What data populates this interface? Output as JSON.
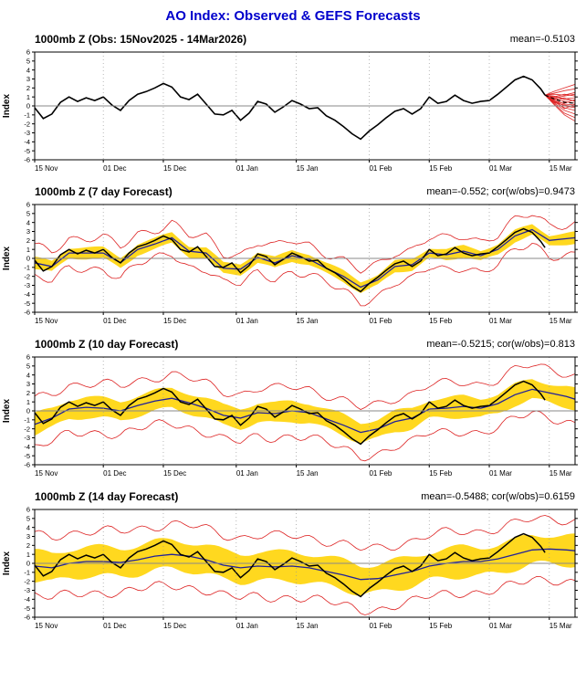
{
  "title": "AO Index: Observed & GEFS Forecasts",
  "colors": {
    "title": "#0000cc",
    "obs_line": "#000000",
    "ensemble_line": "#dd2222",
    "mean_line": "#20209a",
    "band_fill": "#ffd81f",
    "zero_line": "#888888",
    "grid": "#999999",
    "frame": "#000000"
  },
  "chart_data": {
    "type": "line",
    "ylabel": "Index",
    "ylim": [
      -6,
      6
    ],
    "y_ticks": [
      6,
      5,
      4,
      3,
      2,
      1,
      0,
      -1,
      -2,
      -3,
      -4,
      -5,
      -6
    ],
    "x_domain": [
      0,
      126
    ],
    "x_ticks": [
      {
        "day": 0,
        "label": "15 Nov"
      },
      {
        "day": 16,
        "label": "01 Dec"
      },
      {
        "day": 30,
        "label": "15 Dec"
      },
      {
        "day": 47,
        "label": "01 Jan"
      },
      {
        "day": 61,
        "label": "15 Jan"
      },
      {
        "day": 78,
        "label": "01 Feb"
      },
      {
        "day": 92,
        "label": "15 Feb"
      },
      {
        "day": 106,
        "label": "01 Mar"
      },
      {
        "day": 120,
        "label": "15 Mar"
      }
    ],
    "obs": {
      "x": [
        0,
        2,
        4,
        6,
        8,
        10,
        12,
        14,
        16,
        18,
        20,
        22,
        24,
        26,
        28,
        30,
        32,
        34,
        36,
        38,
        40,
        42,
        44,
        46,
        48,
        50,
        52,
        54,
        56,
        58,
        60,
        62,
        64,
        66,
        68,
        70,
        72,
        74,
        76,
        78,
        80,
        82,
        84,
        86,
        88,
        90,
        92,
        94,
        96,
        98,
        100,
        102,
        104,
        106,
        108,
        110,
        112,
        114,
        116,
        118,
        119
      ],
      "y": [
        -0.2,
        -1.4,
        -0.9,
        0.4,
        1.0,
        0.5,
        0.9,
        0.6,
        1.0,
        0.1,
        -0.5,
        0.6,
        1.3,
        1.6,
        2.0,
        2.5,
        2.1,
        1.0,
        0.7,
        1.3,
        0.2,
        -0.9,
        -1.0,
        -0.5,
        -1.6,
        -0.8,
        0.5,
        0.2,
        -0.7,
        -0.1,
        0.6,
        0.2,
        -0.3,
        -0.2,
        -1.1,
        -1.6,
        -2.3,
        -3.1,
        -3.7,
        -2.8,
        -2.1,
        -1.3,
        -0.6,
        -0.3,
        -0.9,
        -0.3,
        1.0,
        0.3,
        0.5,
        1.2,
        0.6,
        0.3,
        0.5,
        0.6,
        1.3,
        2.1,
        2.9,
        3.3,
        2.9,
        1.9,
        1.2
      ]
    },
    "panels": [
      {
        "id": "obs",
        "title": "1000mb Z (Obs: 15Nov2025 - 14Mar2026)",
        "stats": "mean=-0.5103",
        "ensemble": {
          "days": [
            119,
            121,
            123.5,
            126
          ],
          "members": [
            [
              1.2,
              1.6,
              2.0,
              2.4
            ],
            [
              1.2,
              1.4,
              1.7,
              1.9
            ],
            [
              1.2,
              1.3,
              1.2,
              1.5
            ],
            [
              1.2,
              1.0,
              1.3,
              1.1
            ],
            [
              1.2,
              1.1,
              0.8,
              0.9
            ],
            [
              1.2,
              0.9,
              0.7,
              0.6
            ],
            [
              1.2,
              0.8,
              0.5,
              0.3
            ],
            [
              1.2,
              0.7,
              0.2,
              0.1
            ],
            [
              1.2,
              0.6,
              0.0,
              -0.2
            ],
            [
              1.2,
              0.5,
              -0.2,
              -0.5
            ],
            [
              1.2,
              0.4,
              -0.5,
              -0.9
            ],
            [
              1.2,
              0.3,
              -0.8,
              -1.3
            ],
            [
              1.2,
              0.2,
              -1.0,
              -1.7
            ],
            [
              1.2,
              0.5,
              0.3,
              0.7
            ],
            [
              1.2,
              0.9,
              1.1,
              1.3
            ],
            [
              1.2,
              0.7,
              0.9,
              0.5
            ],
            [
              1.2,
              0.4,
              0.1,
              -0.1
            ],
            [
              1.2,
              0.6,
              -0.3,
              0.2
            ]
          ]
        },
        "ensemble_mean": {
          "days": [
            119,
            121,
            123.5,
            126
          ],
          "values": [
            1.2,
            0.8,
            0.4,
            0.3
          ]
        }
      },
      {
        "id": "f07",
        "title": "1000mb Z (7 day Forecast)",
        "stats": "mean=-0.552; cor(w/obs)=0.9473",
        "spread": 0.6,
        "range": 1.7,
        "mean": {
          "x": [
            0,
            4,
            8,
            12,
            16,
            20,
            24,
            28,
            32,
            36,
            40,
            44,
            48,
            52,
            56,
            60,
            64,
            68,
            72,
            76,
            80,
            84,
            88,
            92,
            96,
            100,
            104,
            108,
            112,
            116,
            120,
            124,
            126
          ],
          "y": [
            -0.5,
            -0.9,
            0.6,
            0.6,
            0.6,
            -0.5,
            1.0,
            1.6,
            2.3,
            0.8,
            0.6,
            -1.1,
            -1.2,
            0.1,
            -0.5,
            0.3,
            -0.1,
            -1.1,
            -2.0,
            -3.2,
            -2.4,
            -0.9,
            -0.7,
            0.6,
            0.4,
            0.8,
            0.3,
            1.0,
            2.5,
            3.2,
            2.0,
            2.2,
            2.3
          ]
        }
      },
      {
        "id": "f10",
        "title": "1000mb Z (10 day Forecast)",
        "stats": "mean=-0.5215; cor(w/obs)=0.813",
        "spread": 1.1,
        "range": 2.7,
        "mean": {
          "x": [
            0,
            4,
            8,
            12,
            16,
            20,
            24,
            28,
            32,
            36,
            40,
            44,
            48,
            52,
            56,
            60,
            64,
            68,
            72,
            76,
            80,
            84,
            88,
            92,
            96,
            100,
            104,
            108,
            112,
            116,
            120,
            124,
            126
          ],
          "y": [
            -1.5,
            -0.8,
            0.2,
            0.4,
            0.3,
            0.0,
            0.6,
            1.1,
            1.4,
            0.9,
            0.3,
            -0.5,
            -0.8,
            -0.2,
            -0.3,
            0.0,
            -0.2,
            -0.9,
            -1.6,
            -2.4,
            -2.0,
            -1.2,
            -0.8,
            0.2,
            0.3,
            0.5,
            0.3,
            0.8,
            1.8,
            2.4,
            2.0,
            1.6,
            1.3
          ]
        }
      },
      {
        "id": "f14",
        "title": "1000mb Z (14 day Forecast)",
        "stats": "mean=-0.5488; cor(w/obs)=0.6159",
        "spread": 1.6,
        "range": 3.4,
        "mean": {
          "x": [
            0,
            4,
            8,
            12,
            16,
            20,
            24,
            28,
            32,
            36,
            40,
            44,
            48,
            52,
            56,
            60,
            64,
            68,
            72,
            76,
            80,
            84,
            88,
            92,
            96,
            100,
            104,
            108,
            112,
            116,
            120,
            124,
            126
          ],
          "y": [
            -0.3,
            -0.5,
            0.0,
            0.2,
            0.2,
            0.1,
            0.4,
            0.8,
            1.0,
            0.8,
            0.4,
            -0.2,
            -0.5,
            -0.3,
            -0.4,
            -0.3,
            -0.5,
            -0.9,
            -1.3,
            -1.8,
            -1.7,
            -1.3,
            -0.9,
            -0.3,
            0.0,
            0.2,
            0.2,
            0.5,
            1.0,
            1.5,
            1.6,
            1.5,
            1.4
          ]
        }
      }
    ]
  }
}
